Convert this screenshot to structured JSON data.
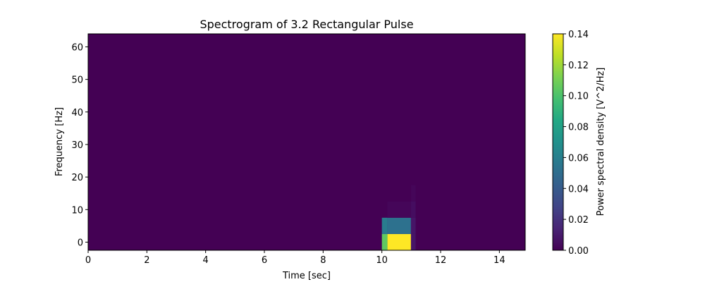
{
  "chart_data": {
    "type": "heatmap",
    "title": "Spectrogram of 3.2 Rectangular Pulse",
    "xlabel": "Time [sec]",
    "ylabel": "Frequency [Hz]",
    "xlim": [
      0,
      14.88
    ],
    "ylim": [
      -2.5,
      64
    ],
    "xticks": [
      0,
      2,
      4,
      6,
      8,
      10,
      12,
      14
    ],
    "yticks": [
      0,
      10,
      20,
      30,
      40,
      50,
      60
    ],
    "grid": false,
    "colorbar": {
      "label": "Power spectral density [V^2/Hz]",
      "range": [
        0,
        0.14
      ],
      "ticks": [
        "0.00",
        "0.02",
        "0.04",
        "0.06",
        "0.08",
        "0.10",
        "0.12",
        "0.14"
      ],
      "colormap": "viridis"
    },
    "background_value": 0,
    "cells": [
      {
        "x": [
          10.0,
          10.19
        ],
        "y": [
          -2.5,
          2.5
        ],
        "value": 0.105
      },
      {
        "x": [
          10.19,
          10.99
        ],
        "y": [
          -2.5,
          2.5
        ],
        "value": 0.14
      },
      {
        "x": [
          10.99,
          11.15
        ],
        "y": [
          -2.5,
          2.5
        ],
        "value": 0.008
      },
      {
        "x": [
          10.0,
          10.19
        ],
        "y": [
          2.5,
          7.5
        ],
        "value": 0.058
      },
      {
        "x": [
          10.19,
          10.99
        ],
        "y": [
          2.5,
          7.5
        ],
        "value": 0.052
      },
      {
        "x": [
          10.99,
          11.15
        ],
        "y": [
          2.5,
          7.5
        ],
        "value": 0.008
      },
      {
        "x": [
          10.99,
          11.15
        ],
        "y": [
          7.5,
          12.5
        ],
        "value": 0.005
      },
      {
        "x": [
          10.99,
          11.15
        ],
        "y": [
          12.5,
          17.5
        ],
        "value": 0.002
      },
      {
        "x": [
          10.19,
          10.99
        ],
        "y": [
          7.5,
          12.5
        ],
        "value": 0.002
      }
    ]
  }
}
